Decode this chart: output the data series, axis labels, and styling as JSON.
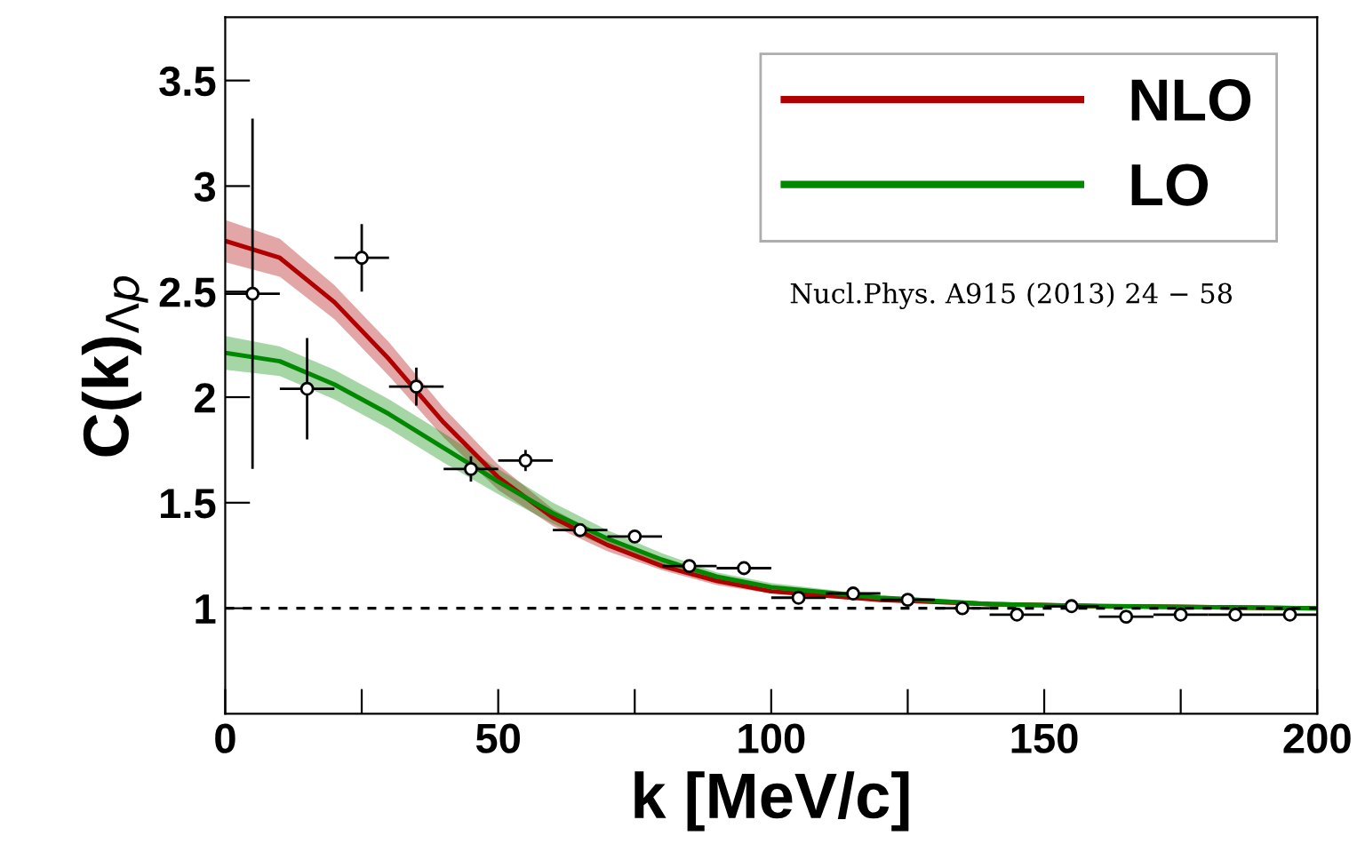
{
  "chart_data": {
    "type": "line",
    "xlabel": "k [MeV/c]",
    "ylabel": "C(k)$_{Λp}$",
    "annotations": [
      "Nucl.Phys. A915 (2013) 24 − 58"
    ],
    "xlim": [
      0,
      200
    ],
    "ylim": [
      0.5,
      3.8
    ],
    "xticks": [
      0,
      {
        "value": 25,
        "label": null
      },
      50,
      {
        "value": 75,
        "label": null
      },
      100,
      {
        "value": 125,
        "label": null
      },
      150,
      {
        "value": 175,
        "label": null
      },
      200
    ],
    "yticks": [
      1,
      1.5,
      2,
      2.5,
      3,
      3.5
    ],
    "grid": false,
    "legend": "top right",
    "line_style": "solid",
    "ref_lines": [
      {
        "axis": "y",
        "value": 1,
        "label": null,
        "color": "#000000",
        "line_style": "dashed"
      }
    ],
    "series": [
      {
        "name": "NLO",
        "color": "#b00000",
        "marker": "none",
        "x": [
          0,
          10,
          20,
          30,
          40,
          50,
          60,
          70,
          80,
          90,
          100,
          120,
          140,
          160,
          200
        ],
        "values": [
          2.74,
          2.66,
          2.45,
          2.18,
          1.88,
          1.62,
          1.43,
          1.3,
          1.2,
          1.13,
          1.08,
          1.04,
          1.02,
          1.01,
          1.0
        ],
        "lower": [
          2.64,
          2.57,
          2.37,
          2.1,
          1.81,
          1.56,
          1.39,
          1.27,
          1.18,
          1.11,
          1.07,
          1.03,
          1.01,
          1.0,
          0.99
        ],
        "upper": [
          2.84,
          2.75,
          2.53,
          2.26,
          1.95,
          1.68,
          1.47,
          1.33,
          1.22,
          1.15,
          1.09,
          1.05,
          1.03,
          1.02,
          1.01
        ]
      },
      {
        "name": "LO",
        "color": "#008800",
        "marker": "none",
        "x": [
          0,
          10,
          20,
          30,
          40,
          50,
          60,
          70,
          80,
          90,
          100,
          120,
          140,
          160,
          200
        ],
        "values": [
          2.21,
          2.17,
          2.06,
          1.92,
          1.76,
          1.6,
          1.45,
          1.33,
          1.23,
          1.15,
          1.1,
          1.05,
          1.02,
          1.01,
          1.0
        ],
        "lower": [
          2.13,
          2.1,
          1.99,
          1.85,
          1.69,
          1.54,
          1.4,
          1.29,
          1.2,
          1.13,
          1.08,
          1.04,
          1.01,
          1.0,
          0.99
        ],
        "upper": [
          2.29,
          2.24,
          2.13,
          1.99,
          1.83,
          1.66,
          1.5,
          1.37,
          1.26,
          1.17,
          1.12,
          1.06,
          1.03,
          1.02,
          1.01
        ]
      },
      {
        "type": "scatter",
        "color": "#000000",
        "marker": "circle",
        "x": [
          5,
          15,
          25,
          35,
          45,
          55,
          65,
          75,
          85,
          95,
          105,
          115,
          125,
          135,
          145,
          155,
          165,
          175,
          185,
          195
        ],
        "values": [
          2.49,
          2.04,
          2.66,
          2.05,
          1.66,
          1.7,
          1.37,
          1.34,
          1.2,
          1.19,
          1.05,
          1.07,
          1.04,
          1.0,
          0.97,
          1.01,
          0.96,
          0.97,
          0.97,
          0.97
        ],
        "errors": [
          [
            1.66,
            3.32
          ],
          [
            1.8,
            2.28
          ],
          [
            2.5,
            2.82
          ],
          [
            1.96,
            2.14
          ],
          0.06,
          0.05,
          0.03,
          0.03,
          0.02,
          0.02,
          0.02,
          0.02,
          0.02,
          0.02,
          0.02,
          0.02,
          0.02,
          0.02,
          0.02,
          0.02
        ],
        "xerrors": [
          5,
          5,
          5,
          5,
          5,
          5,
          5,
          5,
          5,
          5,
          5,
          5,
          5,
          5,
          5,
          5,
          5,
          5,
          5,
          5
        ]
      }
    ]
  }
}
